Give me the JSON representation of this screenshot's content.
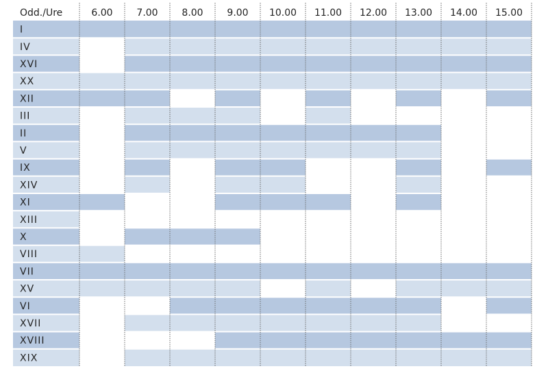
{
  "chart_data": {
    "type": "heatmap",
    "corner_label": "Odd./Ure",
    "columns": [
      "6.00",
      "7.00",
      "8.00",
      "9.00",
      "10.00",
      "11.00",
      "12.00",
      "13.00",
      "14.00",
      "15.00"
    ],
    "rows": [
      {
        "label": "I",
        "cells": [
          1,
          1,
          1,
          1,
          1,
          1,
          1,
          1,
          1,
          1
        ]
      },
      {
        "label": "IV",
        "cells": [
          0,
          1,
          1,
          1,
          1,
          1,
          1,
          1,
          1,
          1
        ]
      },
      {
        "label": "XVI",
        "cells": [
          0,
          1,
          1,
          1,
          1,
          1,
          1,
          1,
          1,
          1
        ]
      },
      {
        "label": "XX",
        "cells": [
          1,
          1,
          1,
          1,
          1,
          1,
          1,
          1,
          1,
          1
        ]
      },
      {
        "label": "XII",
        "cells": [
          1,
          1,
          0,
          1,
          0,
          1,
          0,
          1,
          0,
          1
        ]
      },
      {
        "label": "III",
        "cells": [
          0,
          1,
          1,
          1,
          0,
          1,
          0,
          0,
          0,
          0
        ]
      },
      {
        "label": "II",
        "cells": [
          0,
          1,
          1,
          1,
          1,
          1,
          1,
          1,
          0,
          0
        ]
      },
      {
        "label": "V",
        "cells": [
          0,
          1,
          1,
          1,
          1,
          1,
          1,
          1,
          0,
          0
        ]
      },
      {
        "label": "IX",
        "cells": [
          0,
          1,
          0,
          1,
          1,
          0,
          0,
          1,
          0,
          1
        ]
      },
      {
        "label": "XIV",
        "cells": [
          0,
          1,
          0,
          1,
          1,
          0,
          0,
          1,
          0,
          0
        ]
      },
      {
        "label": "XI",
        "cells": [
          1,
          0,
          0,
          1,
          1,
          1,
          0,
          1,
          0,
          0
        ]
      },
      {
        "label": "XIII",
        "cells": [
          0,
          0,
          0,
          0,
          0,
          0,
          0,
          0,
          0,
          0
        ]
      },
      {
        "label": "X",
        "cells": [
          0,
          1,
          1,
          1,
          0,
          0,
          0,
          0,
          0,
          0
        ]
      },
      {
        "label": "VIII",
        "cells": [
          1,
          0,
          0,
          0,
          0,
          0,
          0,
          0,
          0,
          0
        ]
      },
      {
        "label": "VII",
        "cells": [
          1,
          1,
          1,
          1,
          1,
          1,
          1,
          1,
          1,
          1
        ]
      },
      {
        "label": "XV",
        "cells": [
          1,
          1,
          1,
          1,
          0,
          1,
          0,
          1,
          1,
          1
        ]
      },
      {
        "label": "VI",
        "cells": [
          0,
          0,
          1,
          1,
          1,
          1,
          1,
          1,
          0,
          1
        ]
      },
      {
        "label": "XVII",
        "cells": [
          0,
          1,
          1,
          1,
          1,
          1,
          1,
          1,
          0,
          0
        ]
      },
      {
        "label": "XVIII",
        "cells": [
          0,
          0,
          0,
          1,
          1,
          1,
          1,
          1,
          1,
          1
        ]
      },
      {
        "label": "XIX",
        "cells": [
          0,
          1,
          1,
          1,
          1,
          1,
          1,
          1,
          1,
          1
        ]
      }
    ],
    "colors": {
      "band_dark": "#b6c8e0",
      "band_light": "#d3dfed",
      "empty": "#ffffff",
      "separator": "#ffffff",
      "gridline": "#6b6b6b",
      "text": "#222222"
    }
  }
}
